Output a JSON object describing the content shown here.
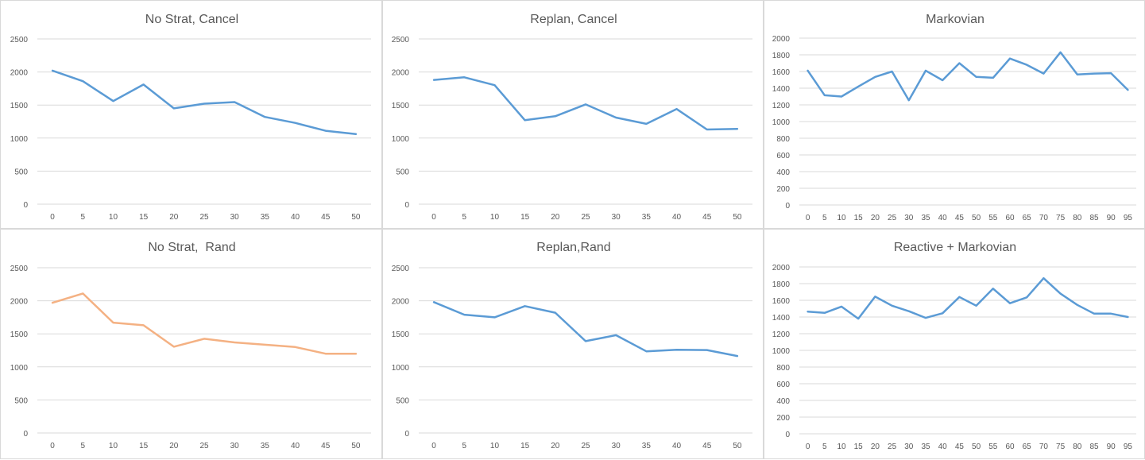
{
  "chart_data": [
    {
      "type": "line",
      "title": "No Strat, Cancel",
      "x": [
        0,
        5,
        10,
        15,
        20,
        25,
        30,
        35,
        40,
        45,
        50
      ],
      "series": [
        {
          "values": [
            2020,
            1860,
            1560,
            1810,
            1450,
            1520,
            1545,
            1320,
            1230,
            1110,
            1060
          ],
          "color": "#5b9bd5"
        }
      ],
      "yticks": [
        0,
        500,
        1000,
        1500,
        2000,
        2500
      ],
      "ylim": [
        0,
        2500
      ],
      "grid": true
    },
    {
      "type": "line",
      "title": "Replan, Cancel",
      "x": [
        0,
        5,
        10,
        15,
        20,
        25,
        30,
        35,
        40,
        45,
        50
      ],
      "series": [
        {
          "values": [
            1880,
            1920,
            1800,
            1270,
            1330,
            1510,
            1310,
            1215,
            1440,
            1130,
            1140
          ],
          "color": "#5b9bd5"
        }
      ],
      "yticks": [
        0,
        500,
        1000,
        1500,
        2000,
        2500
      ],
      "ylim": [
        0,
        2500
      ],
      "grid": true
    },
    {
      "type": "line",
      "title": "Markovian",
      "x": [
        0,
        5,
        10,
        15,
        20,
        25,
        30,
        35,
        40,
        45,
        50,
        55,
        60,
        65,
        70,
        75,
        80,
        85,
        90,
        95
      ],
      "series": [
        {
          "values": [
            1610,
            1315,
            1300,
            1420,
            1535,
            1600,
            1255,
            1610,
            1495,
            1700,
            1535,
            1525,
            1755,
            1680,
            1575,
            1830,
            1565,
            1575,
            1580,
            1380
          ],
          "color": "#5b9bd5"
        }
      ],
      "yticks": [
        0,
        200,
        400,
        600,
        800,
        1000,
        1200,
        1400,
        1600,
        1800,
        2000
      ],
      "ylim": [
        0,
        2000
      ],
      "grid": true
    },
    {
      "type": "line",
      "title": "No Strat,  Rand",
      "x": [
        0,
        5,
        10,
        15,
        20,
        25,
        30,
        35,
        40,
        45,
        50
      ],
      "series": [
        {
          "values": [
            1970,
            2110,
            1670,
            1630,
            1305,
            1425,
            1370,
            1335,
            1300,
            1200,
            1200
          ],
          "color": "#f4b183"
        }
      ],
      "yticks": [
        0,
        500,
        1000,
        1500,
        2000,
        2500
      ],
      "ylim": [
        0,
        2500
      ],
      "grid": true
    },
    {
      "type": "line",
      "title": "Replan,Rand",
      "x": [
        0,
        5,
        10,
        15,
        20,
        25,
        30,
        35,
        40,
        45,
        50
      ],
      "series": [
        {
          "values": [
            1980,
            1790,
            1750,
            1920,
            1820,
            1390,
            1480,
            1235,
            1260,
            1255,
            1165
          ],
          "color": "#5b9bd5"
        }
      ],
      "yticks": [
        0,
        500,
        1000,
        1500,
        2000,
        2500
      ],
      "ylim": [
        0,
        2500
      ],
      "grid": true
    },
    {
      "type": "line",
      "title": "Reactive + Markovian",
      "x": [
        0,
        5,
        10,
        15,
        20,
        25,
        30,
        35,
        40,
        45,
        50,
        55,
        60,
        65,
        70,
        75,
        80,
        85,
        90,
        95
      ],
      "series": [
        {
          "values": [
            1465,
            1450,
            1525,
            1380,
            1645,
            1535,
            1470,
            1390,
            1445,
            1640,
            1535,
            1740,
            1565,
            1635,
            1865,
            1680,
            1545,
            1440,
            1440,
            1400
          ],
          "color": "#5b9bd5"
        }
      ],
      "yticks": [
        0,
        200,
        400,
        600,
        800,
        1000,
        1200,
        1400,
        1600,
        1800,
        2000
      ],
      "ylim": [
        0,
        2000
      ],
      "grid": true
    }
  ]
}
